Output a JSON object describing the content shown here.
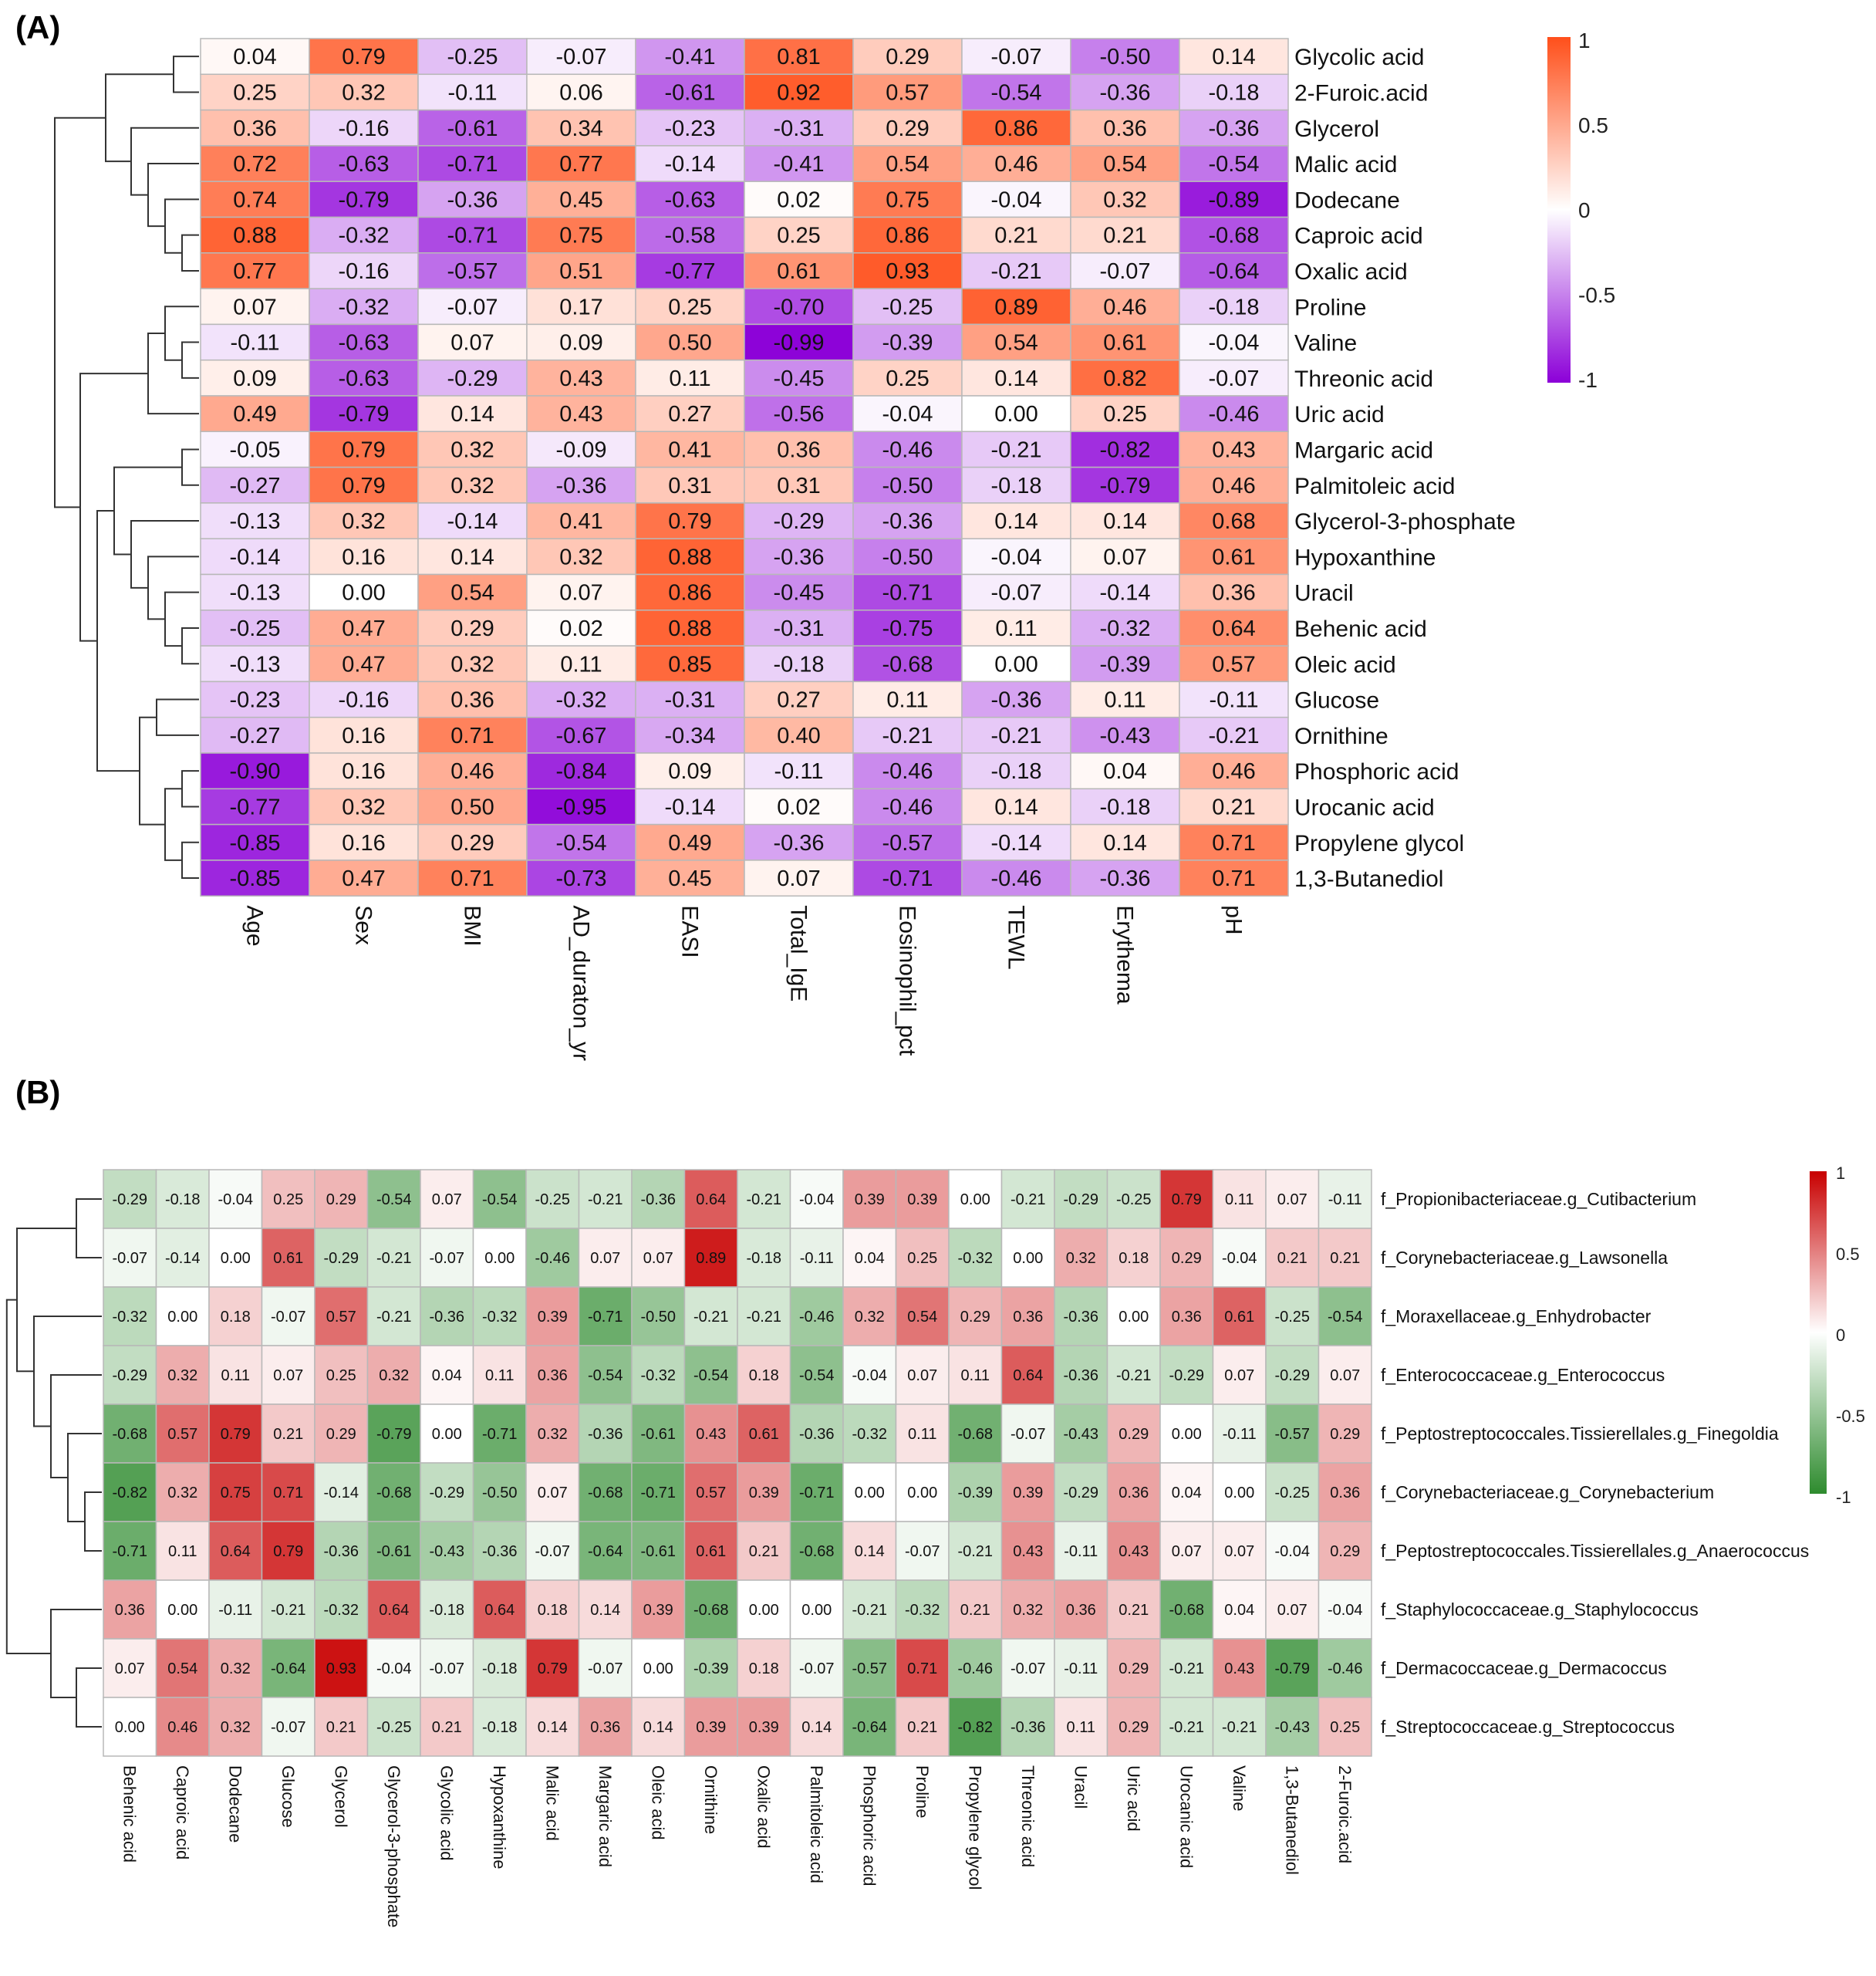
{
  "chart_data": [
    {
      "type": "heatmap",
      "panel_label": "(A)",
      "title": "",
      "rows": [
        "Glycolic acid",
        "2-Furoic.acid",
        "Glycerol",
        "Malic acid",
        "Dodecane",
        "Caproic acid",
        "Oxalic acid",
        "Proline",
        "Valine",
        "Threonic acid",
        "Uric acid",
        "Margaric acid",
        "Palmitoleic acid",
        "Glycerol-3-phosphate",
        "Hypoxanthine",
        "Uracil",
        "Behenic acid",
        "Oleic acid",
        "Glucose",
        "Ornithine",
        "Phosphoric acid",
        "Urocanic acid",
        "Propylene glycol",
        "1,3-Butanediol"
      ],
      "columns": [
        "Age",
        "Sex",
        "BMI",
        "AD_duraton_yr",
        "EASI",
        "Total_IgE",
        "Eosinophil_pct",
        "TEWL",
        "Erythema",
        "pH"
      ],
      "values": [
        [
          0.04,
          0.79,
          -0.25,
          -0.07,
          -0.41,
          0.81,
          0.29,
          -0.07,
          -0.5,
          0.14
        ],
        [
          0.25,
          0.32,
          -0.11,
          0.06,
          -0.61,
          0.92,
          0.57,
          -0.54,
          -0.36,
          -0.18
        ],
        [
          0.36,
          -0.16,
          -0.61,
          0.34,
          -0.23,
          -0.31,
          0.29,
          0.86,
          0.36,
          -0.36
        ],
        [
          0.72,
          -0.63,
          -0.71,
          0.77,
          -0.14,
          -0.41,
          0.54,
          0.46,
          0.54,
          -0.54
        ],
        [
          0.74,
          -0.79,
          -0.36,
          0.45,
          -0.63,
          0.02,
          0.75,
          -0.04,
          0.32,
          -0.89
        ],
        [
          0.88,
          -0.32,
          -0.71,
          0.75,
          -0.58,
          0.25,
          0.86,
          0.21,
          0.21,
          -0.68
        ],
        [
          0.77,
          -0.16,
          -0.57,
          0.51,
          -0.77,
          0.61,
          0.93,
          -0.21,
          -0.07,
          -0.64
        ],
        [
          0.07,
          -0.32,
          -0.07,
          0.17,
          0.25,
          -0.7,
          -0.25,
          0.89,
          0.46,
          -0.18
        ],
        [
          -0.11,
          -0.63,
          0.07,
          0.09,
          0.5,
          -0.99,
          -0.39,
          0.54,
          0.61,
          -0.04
        ],
        [
          0.09,
          -0.63,
          -0.29,
          0.43,
          0.11,
          -0.45,
          0.25,
          0.14,
          0.82,
          -0.07
        ],
        [
          0.49,
          -0.79,
          0.14,
          0.43,
          0.27,
          -0.56,
          -0.04,
          0.0,
          0.25,
          -0.46
        ],
        [
          -0.05,
          0.79,
          0.32,
          -0.09,
          0.41,
          0.36,
          -0.46,
          -0.21,
          -0.82,
          0.43
        ],
        [
          -0.27,
          0.79,
          0.32,
          -0.36,
          0.31,
          0.31,
          -0.5,
          -0.18,
          -0.79,
          0.46
        ],
        [
          -0.13,
          0.32,
          -0.14,
          0.41,
          0.79,
          -0.29,
          -0.36,
          0.14,
          0.14,
          0.68
        ],
        [
          -0.14,
          0.16,
          0.14,
          0.32,
          0.88,
          -0.36,
          -0.5,
          -0.04,
          0.07,
          0.61
        ],
        [
          -0.13,
          0.0,
          0.54,
          0.07,
          0.86,
          -0.45,
          -0.71,
          -0.07,
          -0.14,
          0.36
        ],
        [
          -0.25,
          0.47,
          0.29,
          0.02,
          0.88,
          -0.31,
          -0.75,
          0.11,
          -0.32,
          0.64
        ],
        [
          -0.13,
          0.47,
          0.32,
          0.11,
          0.85,
          -0.18,
          -0.68,
          0.0,
          -0.39,
          0.57
        ],
        [
          -0.23,
          -0.16,
          0.36,
          -0.32,
          -0.31,
          0.27,
          0.11,
          -0.36,
          0.11,
          -0.11
        ],
        [
          -0.27,
          0.16,
          0.71,
          -0.67,
          -0.34,
          0.4,
          -0.21,
          -0.21,
          -0.43,
          -0.21
        ],
        [
          -0.9,
          0.16,
          0.46,
          -0.84,
          0.09,
          -0.11,
          -0.46,
          -0.18,
          0.04,
          0.46
        ],
        [
          -0.77,
          0.32,
          0.5,
          -0.95,
          -0.14,
          0.02,
          -0.46,
          0.14,
          -0.18,
          0.21
        ],
        [
          -0.85,
          0.16,
          0.29,
          -0.54,
          0.49,
          -0.36,
          -0.57,
          -0.14,
          0.14,
          0.71
        ],
        [
          -0.85,
          0.47,
          0.71,
          -0.73,
          0.45,
          0.07,
          -0.71,
          -0.46,
          -0.36,
          0.71
        ]
      ],
      "color_scale": {
        "low": "#8c00d8",
        "mid": "#ffffff",
        "high": "#ff4f1a",
        "range": [
          -1,
          1
        ]
      },
      "legend_ticks": [
        "1",
        "0.5",
        "0",
        "-0.5",
        "-1"
      ],
      "legend_position": "top-right",
      "dendrogram": "rows, left"
    },
    {
      "type": "heatmap",
      "panel_label": "(B)",
      "title": "",
      "rows": [
        "f_Propionibacteriaceae.g_Cutibacterium",
        "f_Corynebacteriaceae.g_Lawsonella",
        "f_Moraxellaceae.g_Enhydrobacter",
        "f_Enterococcaceae.g_Enterococcus",
        "f_Peptostreptococcales.Tissierellales.g_Finegoldia",
        "f_Corynebacteriaceae.g_Corynebacterium",
        "f_Peptostreptococcales.Tissierellales.g_Anaerococcus",
        "f_Staphylococcaceae.g_Staphylococcus",
        "f_Dermacoccaceae.g_Dermacoccus",
        "f_Streptococcaceae.g_Streptococcus"
      ],
      "columns": [
        "Behenic acid",
        "Caproic acid",
        "Dodecane",
        "Glucose",
        "Glycerol",
        "Glycerol-3-phosphate",
        "Glycolic acid",
        "Hypoxanthine",
        "Malic acid",
        "Margaric acid",
        "Oleic acid",
        "Ornithine",
        "Oxalic acid",
        "Palmitoleic acid",
        "Phosphoric acid",
        "Proline",
        "Propylene glycol",
        "Threonic acid",
        "Uracil",
        "Uric acid",
        "Urocanic acid",
        "Valine",
        "1,3-Butanediol",
        "2-Furoic.acid"
      ],
      "values": [
        [
          -0.29,
          -0.18,
          -0.04,
          0.25,
          0.29,
          -0.54,
          0.07,
          -0.54,
          -0.25,
          -0.21,
          -0.36,
          0.64,
          -0.21,
          -0.04,
          0.39,
          0.39,
          0.0,
          -0.21,
          -0.29,
          -0.25,
          0.79,
          0.11,
          0.07,
          -0.11
        ],
        [
          -0.07,
          -0.14,
          0.0,
          0.61,
          -0.29,
          -0.21,
          -0.07,
          0.0,
          -0.46,
          0.07,
          0.07,
          0.89,
          -0.18,
          -0.11,
          0.04,
          0.25,
          -0.32,
          0.0,
          0.32,
          0.18,
          0.29,
          -0.04,
          0.21,
          0.21
        ],
        [
          -0.32,
          0.0,
          0.18,
          -0.07,
          0.57,
          -0.21,
          -0.36,
          -0.32,
          0.39,
          -0.71,
          -0.5,
          -0.21,
          -0.21,
          -0.46,
          0.32,
          0.54,
          0.29,
          0.36,
          -0.36,
          0.0,
          0.36,
          0.61,
          -0.25,
          -0.54
        ],
        [
          -0.29,
          0.32,
          0.11,
          0.07,
          0.25,
          0.32,
          0.04,
          0.11,
          0.36,
          -0.54,
          -0.32,
          -0.54,
          0.18,
          -0.54,
          -0.04,
          0.07,
          0.11,
          0.64,
          -0.36,
          -0.21,
          -0.29,
          0.07,
          -0.29,
          0.07
        ],
        [
          -0.68,
          0.57,
          0.79,
          0.21,
          0.29,
          -0.79,
          0.0,
          -0.71,
          0.32,
          -0.36,
          -0.61,
          0.43,
          0.61,
          -0.36,
          -0.32,
          0.11,
          -0.68,
          -0.07,
          -0.43,
          0.29,
          0.0,
          -0.11,
          -0.57,
          0.29
        ],
        [
          -0.82,
          0.32,
          0.75,
          0.71,
          -0.14,
          -0.68,
          -0.29,
          -0.5,
          0.07,
          -0.68,
          -0.71,
          0.57,
          0.39,
          -0.71,
          0.0,
          0.0,
          -0.39,
          0.39,
          -0.29,
          0.36,
          0.04,
          0.0,
          -0.25,
          0.36
        ],
        [
          -0.71,
          0.11,
          0.64,
          0.79,
          -0.36,
          -0.61,
          -0.43,
          -0.36,
          -0.07,
          -0.64,
          -0.61,
          0.61,
          0.21,
          -0.68,
          0.14,
          -0.07,
          -0.21,
          0.43,
          -0.11,
          0.43,
          0.07,
          0.07,
          -0.04,
          0.29
        ],
        [
          0.36,
          0.0,
          -0.11,
          -0.21,
          -0.32,
          0.64,
          -0.18,
          0.64,
          0.18,
          0.14,
          0.39,
          -0.68,
          0.0,
          0.0,
          -0.21,
          -0.32,
          0.21,
          0.32,
          0.36,
          0.21,
          -0.68,
          0.04,
          0.07,
          -0.04
        ],
        [
          0.07,
          0.54,
          0.32,
          -0.64,
          0.93,
          -0.04,
          -0.07,
          -0.18,
          0.79,
          -0.07,
          0.0,
          -0.39,
          0.18,
          -0.07,
          -0.57,
          0.71,
          -0.46,
          -0.07,
          -0.11,
          0.29,
          -0.21,
          0.43,
          -0.79,
          -0.46
        ],
        [
          0.0,
          0.46,
          0.32,
          -0.07,
          0.21,
          -0.25,
          0.21,
          -0.18,
          0.14,
          0.36,
          0.14,
          0.39,
          0.39,
          0.14,
          -0.64,
          0.21,
          -0.82,
          -0.36,
          0.11,
          0.29,
          -0.21,
          -0.21,
          -0.43,
          0.25
        ]
      ],
      "color_scale": {
        "low": "#2e8b2e",
        "mid": "#ffffff",
        "high": "#c80000",
        "range": [
          -1,
          1
        ]
      },
      "legend_ticks": [
        "1",
        "0.5",
        "0",
        "-0.5",
        "-1"
      ],
      "legend_position": "top-right",
      "dendrogram": "rows, left"
    }
  ]
}
